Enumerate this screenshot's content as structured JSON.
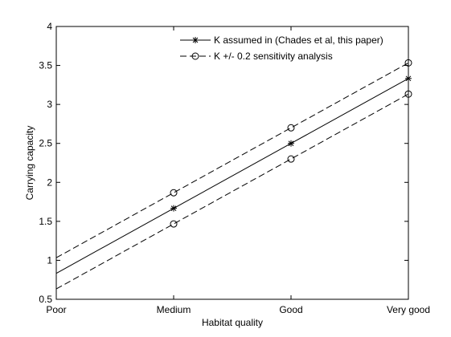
{
  "chart_data": {
    "type": "line",
    "categories": [
      "Poor",
      "Medium",
      "Good",
      "Very good"
    ],
    "x": [
      0,
      1,
      2,
      3
    ],
    "xlim": [
      0,
      3
    ],
    "ylim": [
      0.5,
      4
    ],
    "yticks": [
      "0.5",
      "1",
      "1.5",
      "2",
      "2.5",
      "3",
      "3.5",
      "4"
    ],
    "xlabel": "Habitat quality",
    "ylabel": "Carrying capacity",
    "grid": false,
    "legend_position": "top-right",
    "series": [
      {
        "name": "K assumed in (Chades et al, this paper)",
        "line_style": "solid",
        "marker": "star",
        "line_values": [
          0.833,
          1.667,
          2.5,
          3.333
        ],
        "marker_x": [
          1,
          2,
          3
        ],
        "marker_values": [
          1.667,
          2.5,
          3.333
        ]
      },
      {
        "name": "K +/- 0.2 sensitivity analysis",
        "line_style": "dashed",
        "marker": "circle",
        "line_values": [
          1.033,
          1.867,
          2.7,
          3.533
        ],
        "marker_x": [
          1,
          2,
          3
        ],
        "marker_values": [
          1.867,
          2.7,
          3.533
        ]
      },
      {
        "line_style": "dashed",
        "marker": "circle",
        "legend": false,
        "line_values": [
          0.633,
          1.467,
          2.3,
          3.133
        ],
        "marker_x": [
          1,
          2,
          3
        ],
        "marker_values": [
          1.467,
          2.3,
          3.133
        ]
      }
    ],
    "colors": {
      "line": "#000000",
      "axis": "#000000",
      "background": "#ffffff"
    }
  }
}
